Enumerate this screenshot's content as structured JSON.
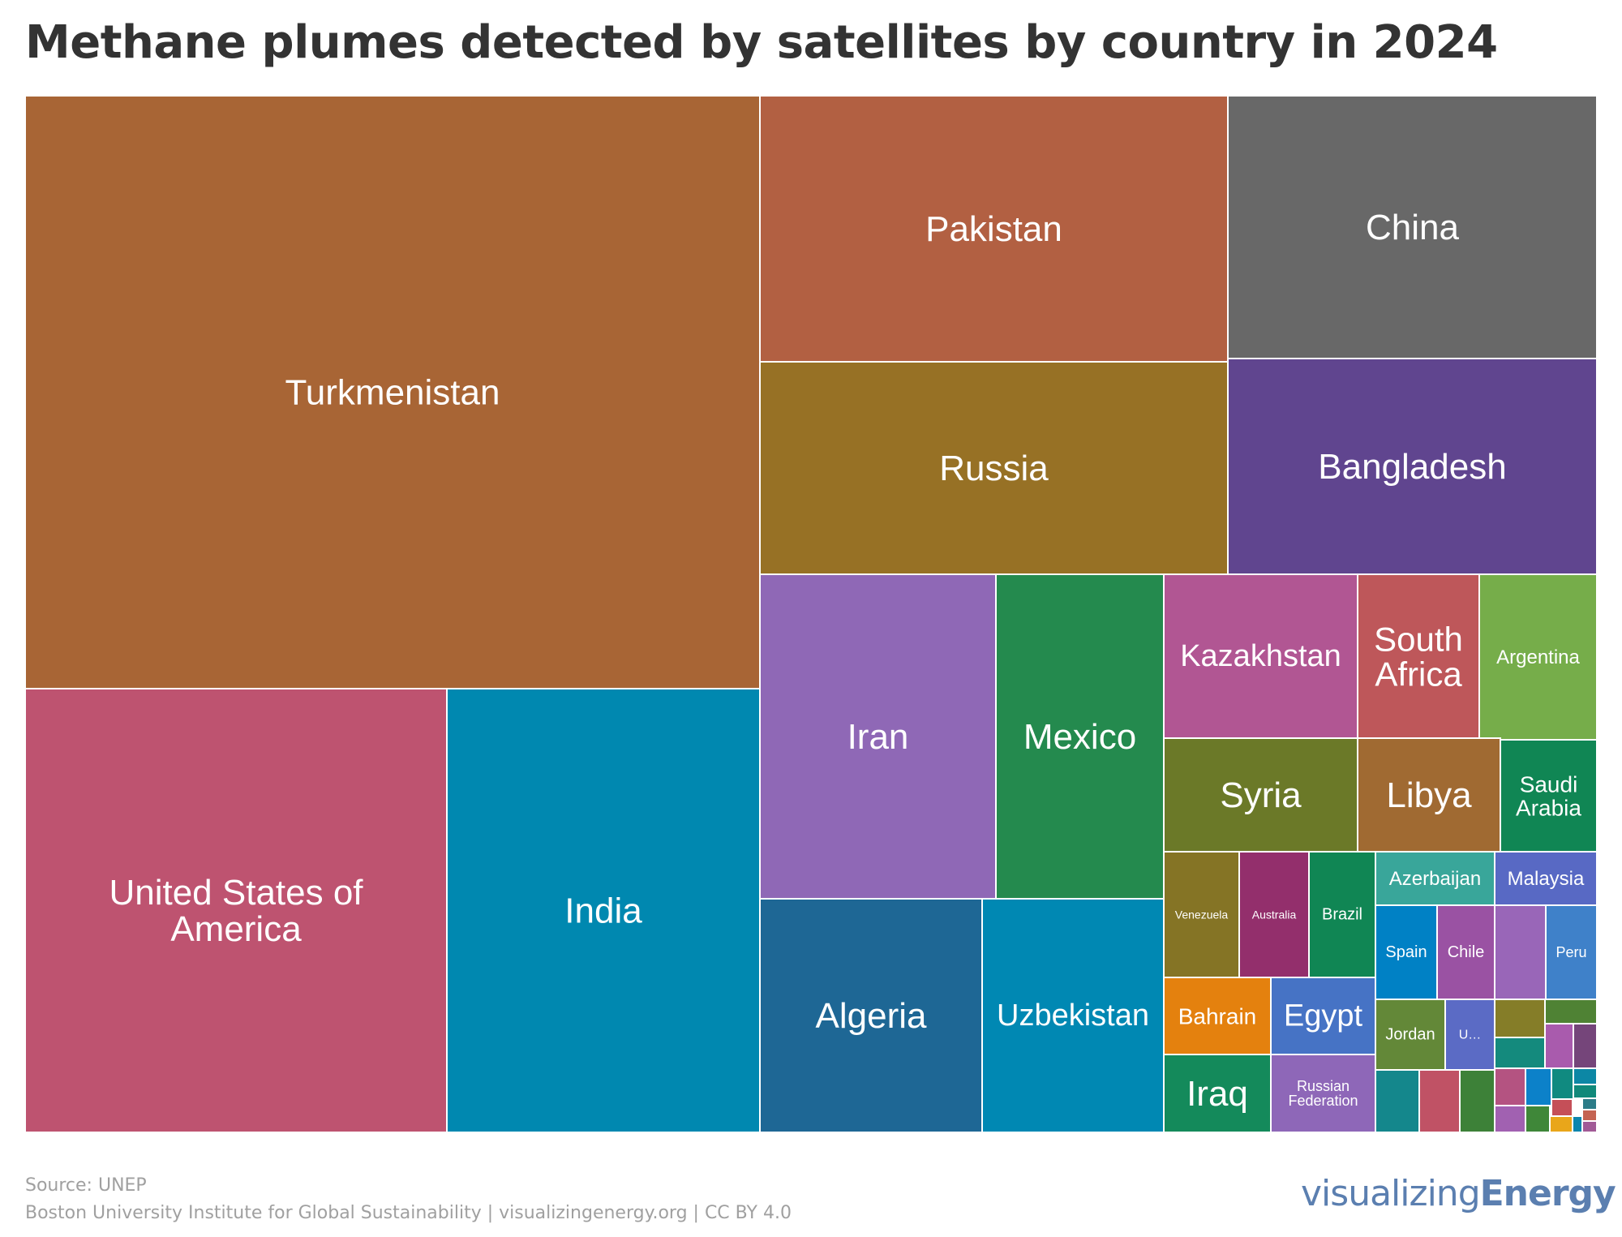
{
  "title": "Methane plumes detected by satellites by country in 2024",
  "footer": {
    "source": "Source: UNEP",
    "credit": "Boston University Institute for Global Sustainability | visualizingenergy.org | CC BY 4.0"
  },
  "brand": {
    "light": "visualizing",
    "bold": "Energy"
  },
  "chart_data": {
    "type": "treemap",
    "title": "Methane plumes detected by satellites by country in 2024",
    "value_note": "Relative values estimated from tile areas",
    "items": [
      {
        "name": "Turkmenistan",
        "label": "Turkmenistan",
        "value": 1600,
        "color": "#a86535"
      },
      {
        "name": "United States of America",
        "label": "United States of America",
        "value": 696,
        "color": "#be5370"
      },
      {
        "name": "India",
        "label": "India",
        "value": 517,
        "color": "#0088b0"
      },
      {
        "name": "Pakistan",
        "label": "Pakistan",
        "value": 459,
        "color": "#b26042"
      },
      {
        "name": "China",
        "label": "China",
        "value": 358,
        "color": "#686868"
      },
      {
        "name": "Russia",
        "label": "Russia",
        "value": 366,
        "color": "#977125"
      },
      {
        "name": "Bangladesh",
        "label": "Bangladesh",
        "value": 293,
        "color": "#60458f"
      },
      {
        "name": "Iran",
        "label": "Iran",
        "value": 282,
        "color": "#8f68b6"
      },
      {
        "name": "Mexico",
        "label": "Mexico",
        "value": 200,
        "color": "#248a4e"
      },
      {
        "name": "Algeria",
        "label": "Algeria",
        "value": 189,
        "color": "#1e6795"
      },
      {
        "name": "Uzbekistan",
        "label": "Uzbekistan",
        "value": 156,
        "color": "#0088b3"
      },
      {
        "name": "Kazakhstan",
        "label": "Kazakhstan",
        "value": 117,
        "color": "#b15693"
      },
      {
        "name": "South Africa",
        "label": "South Africa",
        "value": 73,
        "color": "#be575a"
      },
      {
        "name": "Argentina",
        "label": "Argentina",
        "value": 73,
        "color": "#76ad4a"
      },
      {
        "name": "Syria",
        "label": "Syria",
        "value": 82,
        "color": "#6b7928"
      },
      {
        "name": "Libya",
        "label": "Libya",
        "value": 60,
        "color": "#a06a32"
      },
      {
        "name": "Saudi Arabia",
        "label": "Saudi Arabia",
        "value": 42,
        "color": "#108654"
      },
      {
        "name": "Venezuela",
        "label": "Venezuela",
        "value": 26,
        "color": "#857425"
      },
      {
        "name": "Australia",
        "label": "Australia",
        "value": 26,
        "color": "#932f6c"
      },
      {
        "name": "Brazil",
        "label": "Brazil",
        "value": 24,
        "color": "#108654"
      },
      {
        "name": "Bahrain",
        "label": "Bahrain",
        "value": 16,
        "color": "#e4810e"
      },
      {
        "name": "Egypt",
        "label": "Egypt",
        "value": 16,
        "color": "#4673c5"
      },
      {
        "name": "Iraq",
        "label": "Iraq",
        "value": 16,
        "color": "#148a5b"
      },
      {
        "name": "Russian Federation",
        "label": "Russian Federation",
        "value": 16,
        "color": "#8e67b8"
      },
      {
        "name": "Azerbaijan",
        "label": "Azerbaijan",
        "value": 11,
        "color": "#39a69a"
      },
      {
        "name": "Malaysia",
        "label": "Malaysia",
        "value": 8,
        "color": "#5869c4"
      },
      {
        "name": "Spain",
        "label": "Spain",
        "value": 10,
        "color": "#0081c5"
      },
      {
        "name": "Chile",
        "label": "Chile",
        "value": 10,
        "color": "#9a52a3"
      },
      {
        "name": "Peru",
        "label": "Peru",
        "value": 10,
        "color": "#3f81c9"
      },
      {
        "name": "Jordan",
        "label": "Jordan",
        "value": 8,
        "color": "#638838"
      },
      {
        "name": "U…",
        "label": "U…",
        "value": 5,
        "color": "#5b6bc5"
      }
    ],
    "unlabeled_small_tiles": [
      {
        "value": 10,
        "color": "#9966b8"
      },
      {
        "value": 4,
        "color": "#857d28"
      },
      {
        "value": 4,
        "color": "#4f8234"
      },
      {
        "value": 3,
        "color": "#148a7d"
      },
      {
        "value": 3,
        "color": "#a95bad"
      },
      {
        "value": 3,
        "color": "#75457a"
      },
      {
        "value": 6,
        "color": "#14878c"
      },
      {
        "value": 6,
        "color": "#c05265"
      },
      {
        "value": 6,
        "color": "#3d8138"
      },
      {
        "value": 2,
        "color": "#b45381"
      },
      {
        "value": 2,
        "color": "#0c81c9"
      },
      {
        "value": 2,
        "color": "#108a80"
      },
      {
        "value": 2,
        "color": "#a161b1"
      },
      {
        "value": 2,
        "color": "#3f8739"
      },
      {
        "value": 1,
        "color": "#0c87a5"
      },
      {
        "value": 1,
        "color": "#c54f58"
      },
      {
        "value": 1,
        "color": "#10897a"
      },
      {
        "value": 1,
        "color": "#e9a61a"
      },
      {
        "value": 1,
        "color": "#0c85ad"
      },
      {
        "value": 1,
        "color": "#2c7c88"
      },
      {
        "value": 1,
        "color": "#c46352"
      },
      {
        "value": 1,
        "color": "#a15a96"
      }
    ]
  }
}
